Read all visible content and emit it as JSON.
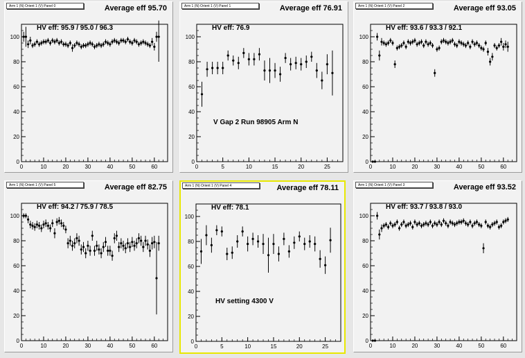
{
  "pads": [
    {
      "title": "Arm 1 (N) Orient 1 (V) Panel 0",
      "average": "Average eff 95.70",
      "hv": "HV eff:   95.9 / 95.0 / 96.3",
      "note": "",
      "selected": false
    },
    {
      "title": "Arm 1 (N) Orient 1 (V) Panel 1",
      "average": "Average eff 76.91",
      "hv": "HV eff:    76.9",
      "note": "V Gap 2 Run 98905 Arm N",
      "selected": false
    },
    {
      "title": "Arm 1 (N) Orient 1 (V) Panel 2",
      "average": "Average eff 93.05",
      "hv": "HV eff:    93.6 / 93.3 / 92.1",
      "note": "",
      "selected": false
    },
    {
      "title": "Arm 1 (N) Orient 1 (V) Panel 5",
      "average": "Average eff 82.75",
      "hv": "HV eff:    94.2 / 75.9 / 78.5",
      "note": "",
      "selected": false
    },
    {
      "title": "Arm 1 (N) Orient 1 (V) Panel 4",
      "average": "Average eff 78.11",
      "hv": "HV eff:    78.1",
      "note": "HV setting 4300 V",
      "selected": true
    },
    {
      "title": "Arm 1 (N) Orient 1 (V) Panel 3",
      "average": "Average eff 93.52",
      "hv": "HV eff:    93.7 / 93.8 / 93.0",
      "note": "",
      "selected": false
    }
  ],
  "chart_data": [
    {
      "type": "scatter",
      "xlim": [
        0,
        66
      ],
      "ylim": [
        0,
        110
      ],
      "xticks": [
        0,
        10,
        20,
        30,
        40,
        50,
        60
      ],
      "yticks": [
        0,
        20,
        40,
        60,
        80,
        100
      ],
      "x": [
        1,
        2,
        3,
        4,
        5,
        6,
        7,
        8,
        9,
        10,
        11,
        12,
        13,
        14,
        15,
        16,
        17,
        18,
        19,
        20,
        21,
        22,
        23,
        24,
        25,
        26,
        27,
        28,
        29,
        30,
        31,
        32,
        33,
        34,
        35,
        36,
        37,
        38,
        39,
        40,
        41,
        42,
        43,
        44,
        45,
        46,
        47,
        48,
        49,
        50,
        51,
        52,
        53,
        54,
        55,
        56,
        57,
        58,
        59,
        60,
        61,
        62
      ],
      "y": [
        100,
        100,
        94,
        97,
        93,
        94,
        96,
        94,
        95,
        96,
        96,
        97,
        95,
        97,
        96,
        97,
        95,
        96,
        94,
        94,
        93,
        95,
        91,
        93,
        95,
        94,
        92,
        93,
        93,
        94,
        95,
        94,
        92,
        93,
        94,
        93,
        94,
        96,
        95,
        94,
        96,
        97,
        96,
        95,
        97,
        97,
        96,
        98,
        96,
        95,
        97,
        96,
        94,
        95,
        96,
        95,
        94,
        93,
        96,
        92,
        100,
        100
      ],
      "err": [
        4,
        8,
        3,
        3,
        2,
        2,
        2,
        2,
        2,
        2,
        2,
        2,
        2,
        2,
        2,
        2,
        2,
        2,
        2,
        2,
        2,
        2,
        3,
        2,
        2,
        2,
        2,
        2,
        2,
        2,
        2,
        2,
        2,
        2,
        2,
        2,
        2,
        2,
        2,
        2,
        2,
        2,
        2,
        2,
        2,
        2,
        2,
        2,
        2,
        2,
        2,
        2,
        2,
        2,
        2,
        2,
        2,
        2,
        3,
        3,
        4,
        20
      ]
    },
    {
      "type": "scatter",
      "xlim": [
        0,
        28
      ],
      "ylim": [
        0,
        110
      ],
      "xticks": [
        0,
        5,
        10,
        15,
        20,
        25
      ],
      "yticks": [
        0,
        20,
        40,
        60,
        80,
        100
      ],
      "x": [
        1,
        2,
        3,
        4,
        5,
        6,
        7,
        8,
        9,
        10,
        11,
        12,
        13,
        14,
        15,
        16,
        17,
        18,
        19,
        20,
        21,
        22,
        23,
        24,
        25,
        26
      ],
      "y": [
        54,
        74,
        75,
        75,
        75,
        85,
        81,
        79,
        87,
        82,
        82,
        86,
        73,
        73,
        73,
        70,
        83,
        78,
        79,
        78,
        80,
        84,
        73,
        65,
        78,
        71
      ],
      "err": [
        10,
        6,
        5,
        5,
        5,
        4,
        4,
        5,
        4,
        5,
        5,
        5,
        8,
        10,
        6,
        6,
        4,
        5,
        5,
        5,
        5,
        4,
        6,
        7,
        8,
        18
      ]
    },
    {
      "type": "scatter",
      "xlim": [
        0,
        66
      ],
      "ylim": [
        0,
        110
      ],
      "xticks": [
        0,
        10,
        20,
        30,
        40,
        50,
        60
      ],
      "yticks": [
        0,
        20,
        40,
        60,
        80,
        100
      ],
      "x": [
        1,
        2,
        3,
        4,
        5,
        6,
        7,
        8,
        9,
        10,
        11,
        12,
        13,
        14,
        15,
        16,
        17,
        18,
        19,
        20,
        21,
        22,
        23,
        24,
        25,
        26,
        27,
        28,
        29,
        30,
        31,
        32,
        33,
        34,
        35,
        36,
        37,
        38,
        39,
        40,
        41,
        42,
        43,
        44,
        45,
        46,
        47,
        48,
        49,
        50,
        51,
        52,
        53,
        54,
        55,
        56,
        57,
        58,
        59,
        60,
        61,
        62
      ],
      "y": [
        0,
        0,
        100,
        85,
        96,
        95,
        94,
        95,
        97,
        95,
        78,
        91,
        92,
        93,
        95,
        92,
        96,
        95,
        96,
        97,
        94,
        95,
        96,
        93,
        96,
        94,
        95,
        93,
        71,
        90,
        91,
        96,
        97,
        96,
        95,
        96,
        97,
        94,
        93,
        96,
        95,
        94,
        93,
        95,
        92,
        96,
        94,
        95,
        93,
        91,
        90,
        95,
        88,
        80,
        84,
        93,
        91,
        93,
        96,
        92,
        94,
        92
      ],
      "err": [
        0,
        0,
        3,
        4,
        3,
        2,
        2,
        2,
        2,
        2,
        3,
        2,
        2,
        2,
        2,
        2,
        2,
        2,
        2,
        2,
        2,
        2,
        2,
        2,
        2,
        2,
        2,
        2,
        3,
        2,
        2,
        2,
        2,
        2,
        2,
        2,
        2,
        2,
        2,
        2,
        2,
        2,
        2,
        2,
        2,
        2,
        2,
        2,
        2,
        2,
        2,
        2,
        3,
        3,
        3,
        2,
        2,
        2,
        3,
        3,
        3,
        4
      ]
    },
    {
      "type": "scatter",
      "xlim": [
        0,
        66
      ],
      "ylim": [
        0,
        110
      ],
      "xticks": [
        0,
        10,
        20,
        30,
        40,
        50,
        60
      ],
      "yticks": [
        0,
        20,
        40,
        60,
        80,
        100
      ],
      "x": [
        1,
        2,
        3,
        4,
        5,
        6,
        7,
        8,
        9,
        10,
        11,
        12,
        13,
        14,
        15,
        16,
        17,
        18,
        19,
        20,
        21,
        22,
        23,
        24,
        25,
        26,
        27,
        28,
        29,
        30,
        31,
        32,
        33,
        34,
        35,
        36,
        37,
        38,
        39,
        40,
        41,
        42,
        43,
        44,
        45,
        46,
        47,
        48,
        49,
        50,
        51,
        52,
        53,
        54,
        55,
        56,
        57,
        58,
        59,
        60,
        61,
        62
      ],
      "y": [
        100,
        100,
        97,
        93,
        92,
        91,
        93,
        92,
        90,
        93,
        94,
        92,
        90,
        94,
        86,
        95,
        96,
        94,
        92,
        89,
        78,
        80,
        76,
        78,
        82,
        80,
        73,
        75,
        70,
        76,
        72,
        84,
        72,
        76,
        73,
        70,
        75,
        79,
        72,
        72,
        68,
        82,
        84,
        75,
        78,
        76,
        74,
        78,
        75,
        79,
        76,
        78,
        82,
        80,
        75,
        80,
        77,
        72,
        78,
        79,
        50,
        78
      ],
      "err": [
        2,
        2,
        3,
        3,
        3,
        3,
        3,
        3,
        3,
        3,
        3,
        3,
        3,
        3,
        4,
        3,
        3,
        3,
        3,
        3,
        4,
        4,
        4,
        4,
        4,
        4,
        4,
        4,
        4,
        4,
        4,
        4,
        4,
        4,
        4,
        4,
        4,
        4,
        4,
        4,
        4,
        4,
        4,
        4,
        4,
        4,
        4,
        4,
        4,
        4,
        4,
        4,
        4,
        4,
        4,
        4,
        4,
        5,
        5,
        5,
        29,
        6
      ]
    },
    {
      "type": "scatter",
      "xlim": [
        0,
        28
      ],
      "ylim": [
        0,
        110
      ],
      "xticks": [
        0,
        5,
        10,
        15,
        20,
        25
      ],
      "yticks": [
        0,
        20,
        40,
        60,
        80,
        100
      ],
      "x": [
        1,
        2,
        3,
        4,
        5,
        6,
        7,
        8,
        9,
        10,
        11,
        12,
        13,
        14,
        15,
        16,
        17,
        18,
        19,
        20,
        21,
        22,
        23,
        24,
        25,
        26
      ],
      "y": [
        72,
        85,
        77,
        89,
        88,
        70,
        71,
        80,
        88,
        78,
        82,
        80,
        78,
        69,
        78,
        70,
        82,
        72,
        79,
        84,
        78,
        80,
        78,
        66,
        61,
        81
      ],
      "err": [
        10,
        8,
        6,
        4,
        4,
        5,
        5,
        5,
        4,
        6,
        5,
        5,
        8,
        14,
        8,
        6,
        5,
        5,
        5,
        4,
        5,
        5,
        6,
        7,
        7,
        10
      ]
    },
    {
      "type": "scatter",
      "xlim": [
        0,
        66
      ],
      "ylim": [
        0,
        110
      ],
      "xticks": [
        0,
        10,
        20,
        30,
        40,
        50,
        60
      ],
      "yticks": [
        0,
        20,
        40,
        60,
        80,
        100
      ],
      "x": [
        1,
        2,
        3,
        4,
        5,
        6,
        7,
        8,
        9,
        10,
        11,
        12,
        13,
        14,
        15,
        16,
        17,
        18,
        19,
        20,
        21,
        22,
        23,
        24,
        25,
        26,
        27,
        28,
        29,
        30,
        31,
        32,
        33,
        34,
        35,
        36,
        37,
        38,
        39,
        40,
        41,
        42,
        43,
        44,
        45,
        46,
        47,
        48,
        49,
        50,
        51,
        52,
        53,
        54,
        55,
        56,
        57,
        58,
        59,
        60,
        61,
        62
      ],
      "y": [
        0,
        0,
        100,
        85,
        90,
        92,
        93,
        91,
        94,
        92,
        93,
        95,
        90,
        93,
        95,
        92,
        93,
        94,
        91,
        95,
        93,
        94,
        92,
        93,
        94,
        93,
        95,
        92,
        94,
        93,
        95,
        93,
        96,
        94,
        92,
        95,
        94,
        93,
        94,
        95,
        95,
        96,
        94,
        93,
        95,
        92,
        94,
        95,
        93,
        92,
        74,
        95,
        92,
        91,
        93,
        94,
        95,
        91,
        92,
        95,
        96,
        97
      ],
      "err": [
        0,
        0,
        3,
        4,
        3,
        2,
        2,
        2,
        2,
        2,
        2,
        2,
        2,
        2,
        2,
        2,
        2,
        2,
        2,
        2,
        2,
        2,
        2,
        2,
        2,
        2,
        2,
        2,
        2,
        2,
        2,
        2,
        2,
        2,
        2,
        2,
        2,
        2,
        2,
        2,
        2,
        2,
        2,
        2,
        2,
        2,
        2,
        2,
        2,
        2,
        4,
        2,
        2,
        2,
        2,
        2,
        2,
        2,
        2,
        2,
        2,
        2
      ]
    }
  ]
}
